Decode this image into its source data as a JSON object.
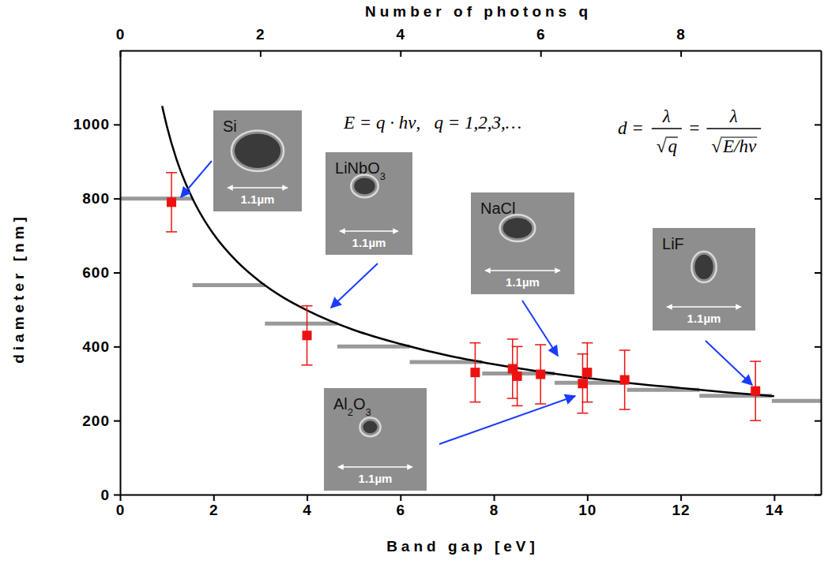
{
  "chart_data": {
    "type": "scatter",
    "x_label": "Band gap [eV]",
    "y_label": "diameter [nm]",
    "x2_label": "Number of photons q",
    "xlim": [
      0,
      15
    ],
    "xticks": [
      0,
      2,
      4,
      6,
      8,
      10,
      12,
      14
    ],
    "x2lim": [
      0,
      10
    ],
    "x2ticks": [
      0,
      2,
      4,
      6,
      8
    ],
    "ylim": [
      0,
      1200
    ],
    "yticks": [
      0,
      200,
      400,
      600,
      800,
      1000
    ],
    "series": [
      {
        "type": "scatter",
        "color": "#ee1111",
        "marker": "square",
        "x": [
          1.1,
          4.0,
          7.6,
          8.4,
          8.5,
          9.0,
          9.9,
          10.0,
          10.8,
          13.6
        ],
        "values": [
          790,
          430,
          330,
          340,
          320,
          325,
          300,
          330,
          310,
          280
        ],
        "errors": [
          80,
          80,
          80,
          80,
          80,
          80,
          80,
          80,
          80,
          80
        ]
      },
      {
        "type": "line",
        "color": "#000000",
        "line_style": "solid",
        "x": [
          0.9,
          1.0,
          1.2,
          1.4,
          1.6,
          1.8,
          2.0,
          2.5,
          3.0,
          3.5,
          4.0,
          5.0,
          6.0,
          7.0,
          8.0,
          9.0,
          10.0,
          11.0,
          12.0,
          13.0,
          14.0
        ],
        "values": [
          1050,
          996,
          909,
          842,
          787,
          742,
          704,
          630,
          575,
          532,
          498,
          445,
          407,
          376,
          352,
          332,
          315,
          300,
          288,
          276,
          266
        ]
      },
      {
        "type": "step",
        "color": "#999999",
        "x_start": [
          0,
          1.55,
          3.1,
          4.65,
          6.2,
          7.75,
          9.3,
          10.85,
          12.4,
          13.95
        ],
        "x_end": [
          1.55,
          3.1,
          4.65,
          6.2,
          7.75,
          9.3,
          10.85,
          12.4,
          13.95,
          15.5
        ],
        "values": [
          800,
          566,
          462,
          400,
          358,
          327,
          302,
          283,
          267,
          253
        ]
      }
    ],
    "annotations": {
      "equation_1": "E = q · hν,   q = 1,2,3,…",
      "equation_2": {
        "left": "d =",
        "equals": "=",
        "fractions": [
          {
            "numerator": "λ",
            "radical": "√",
            "radicand": "q"
          },
          {
            "numerator": "λ",
            "radical": "√",
            "radicand": "E/hν"
          }
        ]
      }
    },
    "insets": [
      {
        "label": "Si",
        "scale_bar": "1.1µm"
      },
      {
        "label": "LiNbO3",
        "scale_bar": "1.1µm"
      },
      {
        "label": "NaCl",
        "scale_bar": "1.1µm"
      },
      {
        "label": "Al2O3",
        "scale_bar": "1.1µm"
      },
      {
        "label": "LiF",
        "scale_bar": "1.1µm"
      }
    ]
  }
}
